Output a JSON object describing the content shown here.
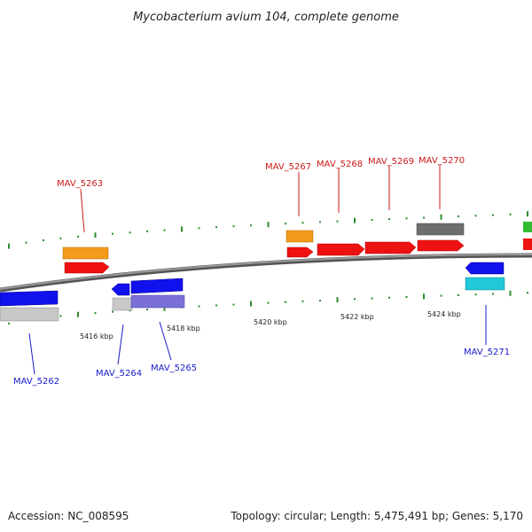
{
  "title": "Mycobacterium avium 104, complete genome",
  "footer": {
    "accession": "Accession: NC_008595",
    "info": "Topology: circular; Length: 5,475,491 bp; Genes: 5,170"
  },
  "kbp_labels": [
    "5416 kbp",
    "5418 kbp",
    "5420 kbp",
    "5422 kbp",
    "5424 kbp"
  ],
  "genes": [
    {
      "name": "MAV_5262",
      "strand": "minus",
      "label_color": "#1a1acc"
    },
    {
      "name": "MAV_5263",
      "strand": "plus",
      "label_color": "#cc1a1a"
    },
    {
      "name": "MAV_5264",
      "strand": "minus",
      "label_color": "#1a1acc"
    },
    {
      "name": "MAV_5265",
      "strand": "minus",
      "label_color": "#1a1acc"
    },
    {
      "name": "MAV_5267",
      "strand": "plus",
      "label_color": "#cc1a1a"
    },
    {
      "name": "MAV_5268",
      "strand": "plus",
      "label_color": "#cc1a1a"
    },
    {
      "name": "MAV_5269",
      "strand": "plus",
      "label_color": "#cc1a1a"
    },
    {
      "name": "MAV_5270",
      "strand": "plus",
      "label_color": "#cc1a1a"
    },
    {
      "name": "MAV_5271",
      "strand": "minus",
      "label_color": "#1a1acc"
    }
  ],
  "colors": {
    "backbone": "#8a8a8a",
    "tick": "#2e8b2e",
    "red": "#ee1111",
    "orange": "#f39a1a",
    "blue": "#1111ee",
    "gray": "#6e6e6e",
    "light_gray": "#c8c8c8",
    "purple": "#7b70d8",
    "cyan": "#20c8d8",
    "green": "#33bb33"
  }
}
